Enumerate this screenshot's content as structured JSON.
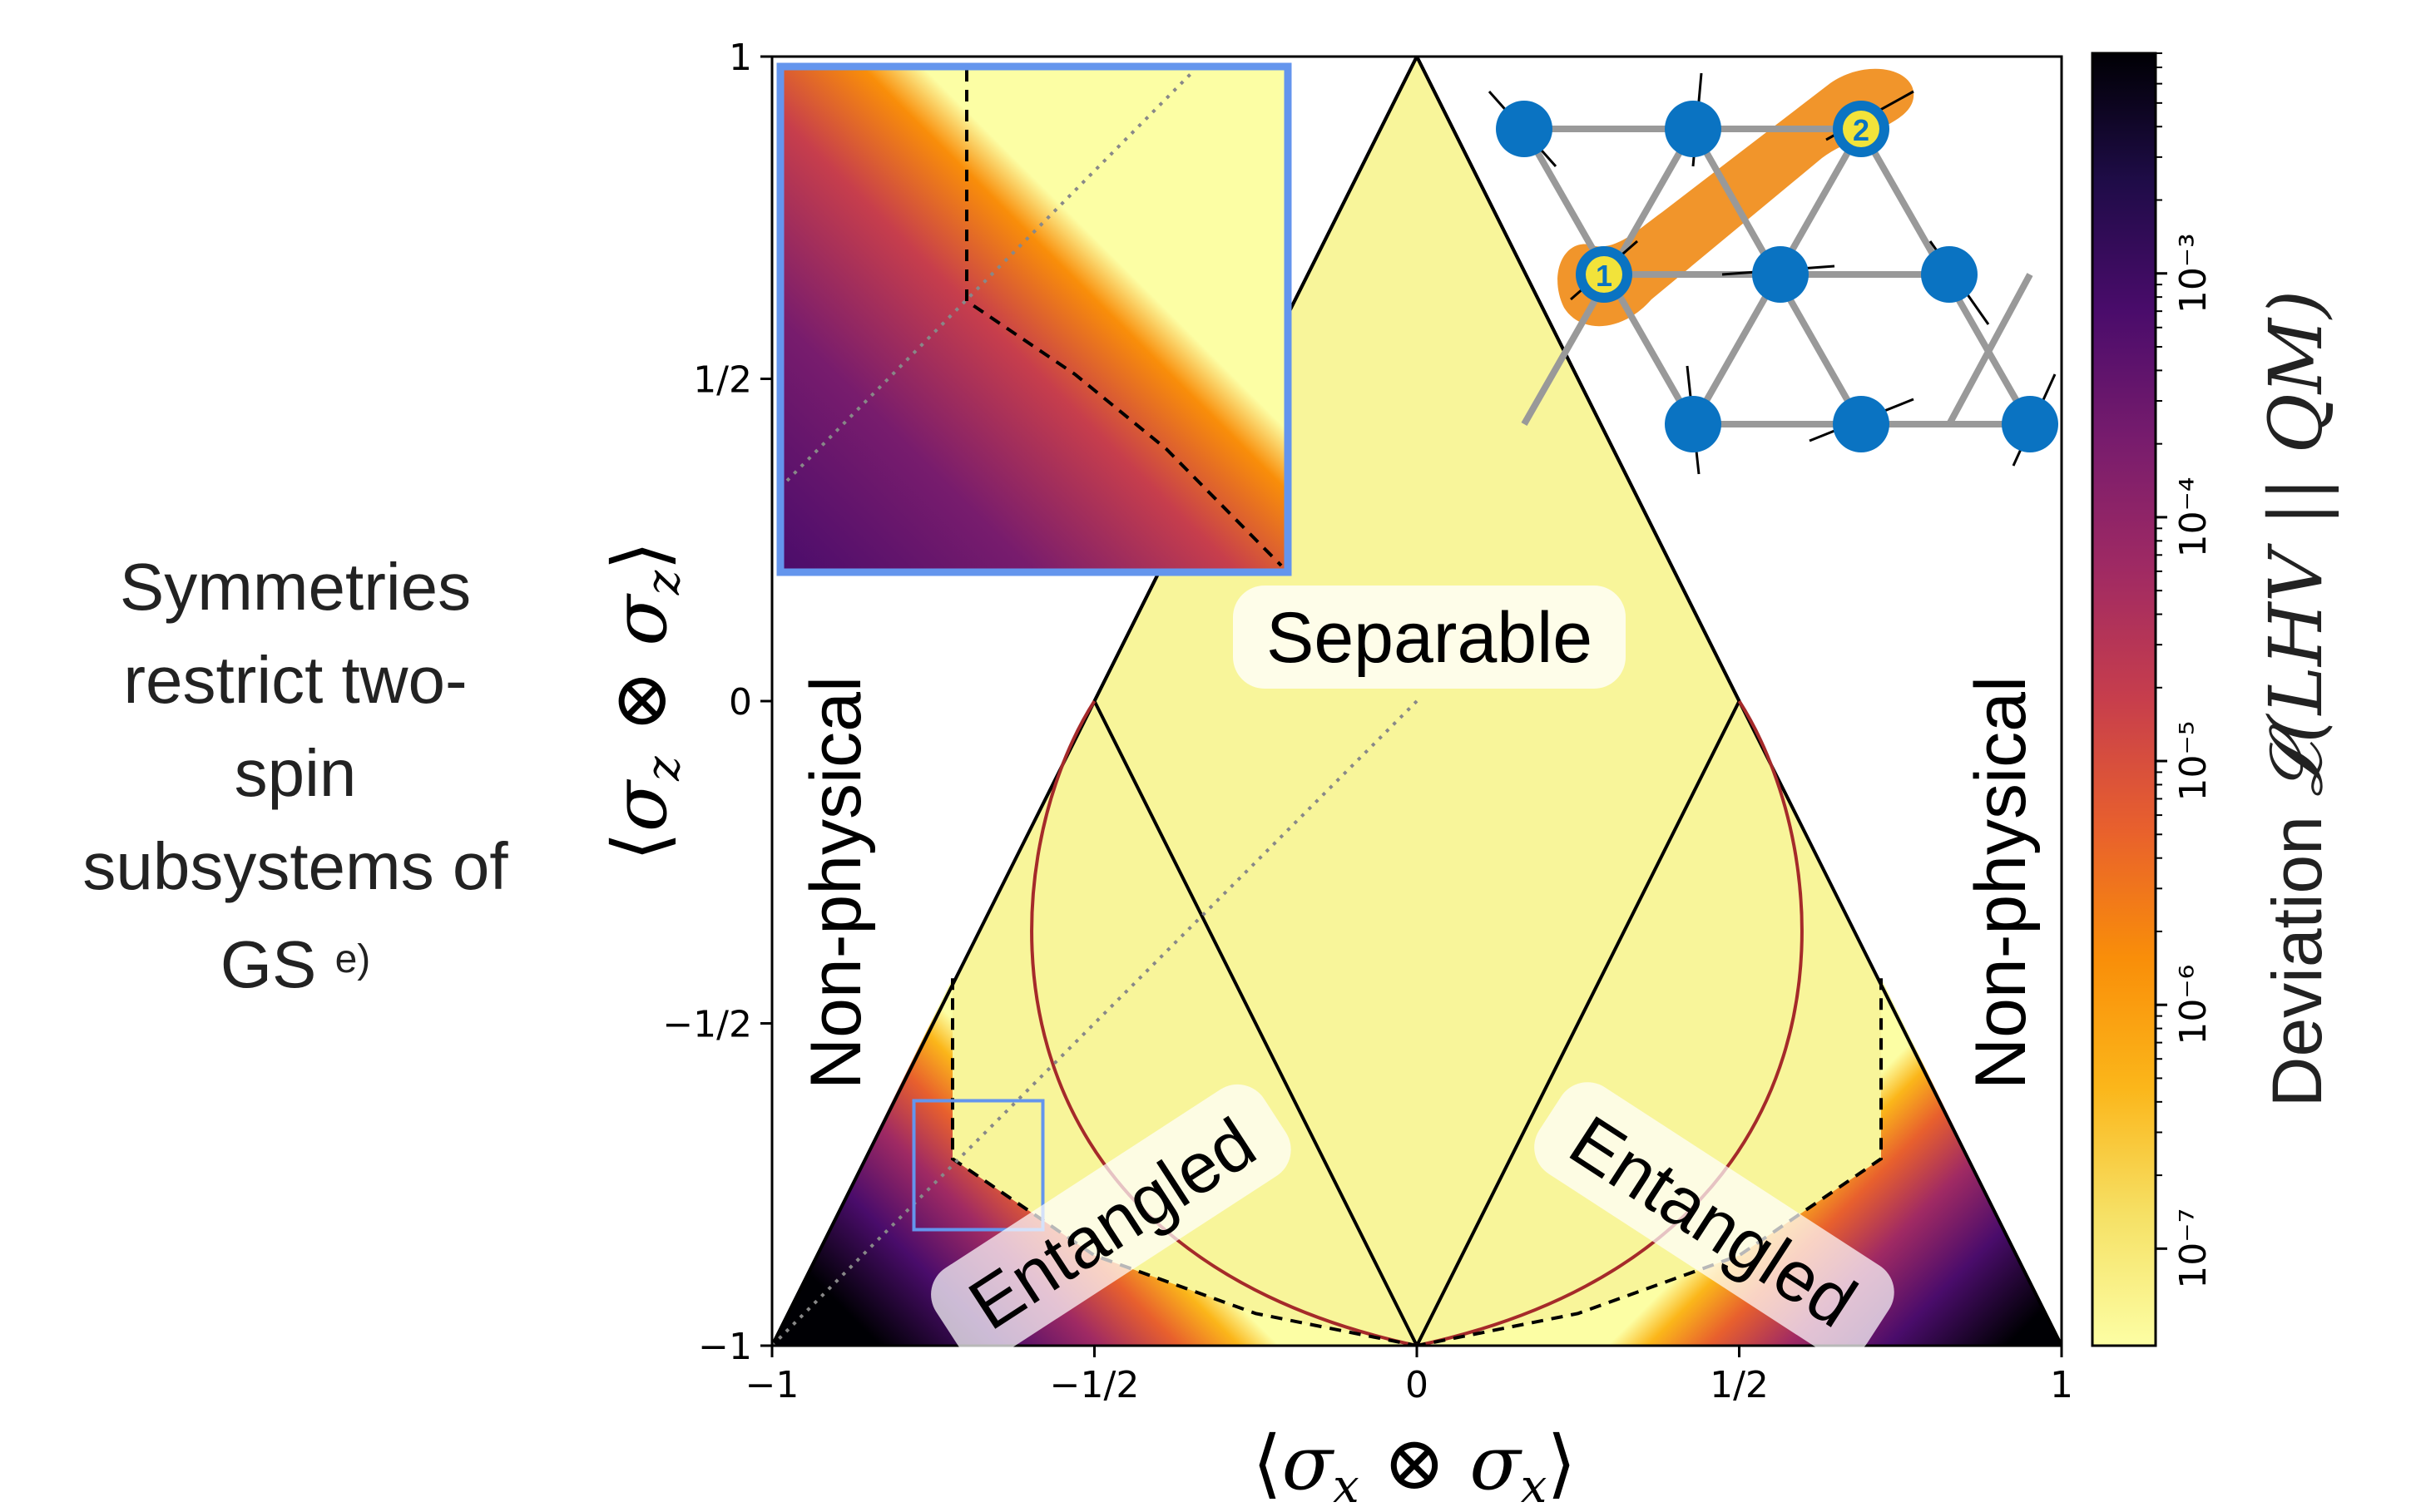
{
  "caption": {
    "lines": [
      "Symmetries",
      "restrict two-",
      "spin",
      "subsystems of",
      "GS"
    ],
    "panel_tag": "e)"
  },
  "colors": {
    "separable": "#f8f59a",
    "curve": "#a52a2a",
    "inset_border": "#6495ed",
    "spin_site": "#0a73c2",
    "pair_highlight": "#f08a14",
    "bond": "#999999"
  },
  "chart_data": {
    "type": "heatmap",
    "xlim": [
      -1,
      1
    ],
    "ylim": [
      -1,
      1
    ],
    "x_ticks": [
      {
        "v": -1,
        "label": "−1"
      },
      {
        "v": -0.5,
        "label": "−1/2"
      },
      {
        "v": 0,
        "label": "0"
      },
      {
        "v": 0.5,
        "label": "1/2"
      },
      {
        "v": 1,
        "label": "1"
      }
    ],
    "y_ticks": [
      {
        "v": -1,
        "label": "−1"
      },
      {
        "v": -0.5,
        "label": "−1/2"
      },
      {
        "v": 0,
        "label": "0"
      },
      {
        "v": 0.5,
        "label": "1/2"
      },
      {
        "v": 1,
        "label": "1"
      }
    ],
    "xlabel": {
      "sigma_sub": "x",
      "text": "⟨σx ⊗ σx⟩"
    },
    "ylabel": {
      "sigma_sub": "z",
      "text": "⟨σz ⊗ σz⟩"
    },
    "physical_region": [
      [
        -1,
        -1
      ],
      [
        1,
        -1
      ],
      [
        0,
        1
      ]
    ],
    "separable_region": [
      [
        -0.5,
        0
      ],
      [
        0,
        -1
      ],
      [
        0.5,
        0
      ],
      [
        0,
        1
      ]
    ],
    "region_labels": {
      "separable": "Separable",
      "entangled_left": "Entangled",
      "entangled_right": "Entangled",
      "nonphysical_left": "Non-physical",
      "nonphysical_right": "Non-physical"
    },
    "dashed_boundary_left": [
      [
        -0.72,
        -0.43
      ],
      [
        -0.72,
        -0.71
      ],
      [
        -0.5,
        -0.86
      ],
      [
        -0.25,
        -0.95
      ],
      [
        0,
        -1
      ]
    ],
    "dashed_boundary_right": [
      [
        0.72,
        -0.43
      ],
      [
        0.72,
        -0.71
      ],
      [
        0.5,
        -0.86
      ],
      [
        0.25,
        -0.95
      ],
      [
        0,
        -1
      ]
    ],
    "gs_curve_note": "closed dark-red curve from (-0.5,0) through (0,-1) to (0.5,0)",
    "inset_zoom_box": {
      "x": [
        -0.78,
        -0.58
      ],
      "y": [
        -0.82,
        -0.62
      ]
    },
    "diagonal": [
      [
        -1,
        -1
      ],
      [
        0,
        0
      ]
    ],
    "colorbar": {
      "scale": "log",
      "range": [
        4e-08,
        0.008
      ],
      "ticks": [
        {
          "v": 1e-07,
          "label": "10⁻⁷"
        },
        {
          "v": 1e-06,
          "label": "10⁻⁶"
        },
        {
          "v": 1e-05,
          "label": "10⁻⁵"
        },
        {
          "v": 0.0001,
          "label": "10⁻⁴"
        },
        {
          "v": 0.001,
          "label": "10⁻³"
        }
      ],
      "title_prefix": "Deviation",
      "title_math": "𝓛(LHV || QM)",
      "colormap": "inferno_r"
    }
  },
  "lattice": {
    "highlighted_sites": [
      "1",
      "2"
    ]
  }
}
